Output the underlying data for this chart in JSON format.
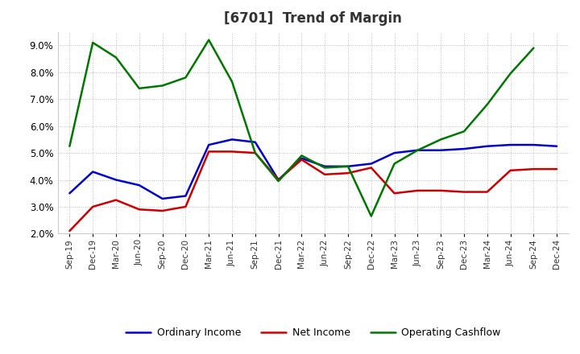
{
  "title": "[6701]  Trend of Margin",
  "x_labels": [
    "Sep-19",
    "Dec-19",
    "Mar-20",
    "Jun-20",
    "Sep-20",
    "Dec-20",
    "Mar-21",
    "Jun-21",
    "Sep-21",
    "Dec-21",
    "Mar-22",
    "Jun-22",
    "Sep-22",
    "Dec-22",
    "Mar-23",
    "Jun-23",
    "Sep-23",
    "Dec-23",
    "Mar-24",
    "Jun-24",
    "Sep-24",
    "Dec-24"
  ],
  "ordinary_income": [
    3.5,
    4.3,
    4.0,
    3.8,
    3.3,
    3.4,
    5.3,
    5.5,
    5.4,
    4.0,
    4.8,
    4.5,
    4.5,
    4.6,
    5.0,
    5.1,
    5.1,
    5.15,
    5.25,
    5.3,
    5.3,
    5.25
  ],
  "net_income": [
    2.1,
    3.0,
    3.25,
    2.9,
    2.85,
    3.0,
    5.05,
    5.05,
    5.0,
    4.0,
    4.75,
    4.2,
    4.25,
    4.45,
    3.5,
    3.6,
    3.6,
    3.55,
    3.55,
    4.35,
    4.4,
    4.4
  ],
  "operating_cashflow": [
    5.25,
    9.1,
    8.55,
    7.4,
    7.5,
    7.8,
    9.2,
    7.65,
    5.0,
    3.95,
    4.9,
    4.45,
    4.5,
    2.65,
    4.6,
    5.1,
    5.5,
    5.8,
    6.8,
    7.95,
    8.9,
    null
  ],
  "ylim_min": 2.0,
  "ylim_max": 9.5,
  "yticks": [
    2.0,
    3.0,
    4.0,
    5.0,
    6.0,
    7.0,
    8.0,
    9.0
  ],
  "ordinary_income_color": "#0000cc",
  "net_income_color": "#cc0000",
  "operating_cashflow_color": "#007700",
  "background_color": "#ffffff",
  "plot_bg_color": "#ffffff",
  "grid_color": "#bbbbbb",
  "title_fontsize": 12,
  "title_color": "#333333",
  "legend_labels": [
    "Ordinary Income",
    "Net Income",
    "Operating Cashflow"
  ],
  "line_width": 1.8,
  "tick_labelsize": 7.5,
  "ytick_labelsize": 8.5
}
